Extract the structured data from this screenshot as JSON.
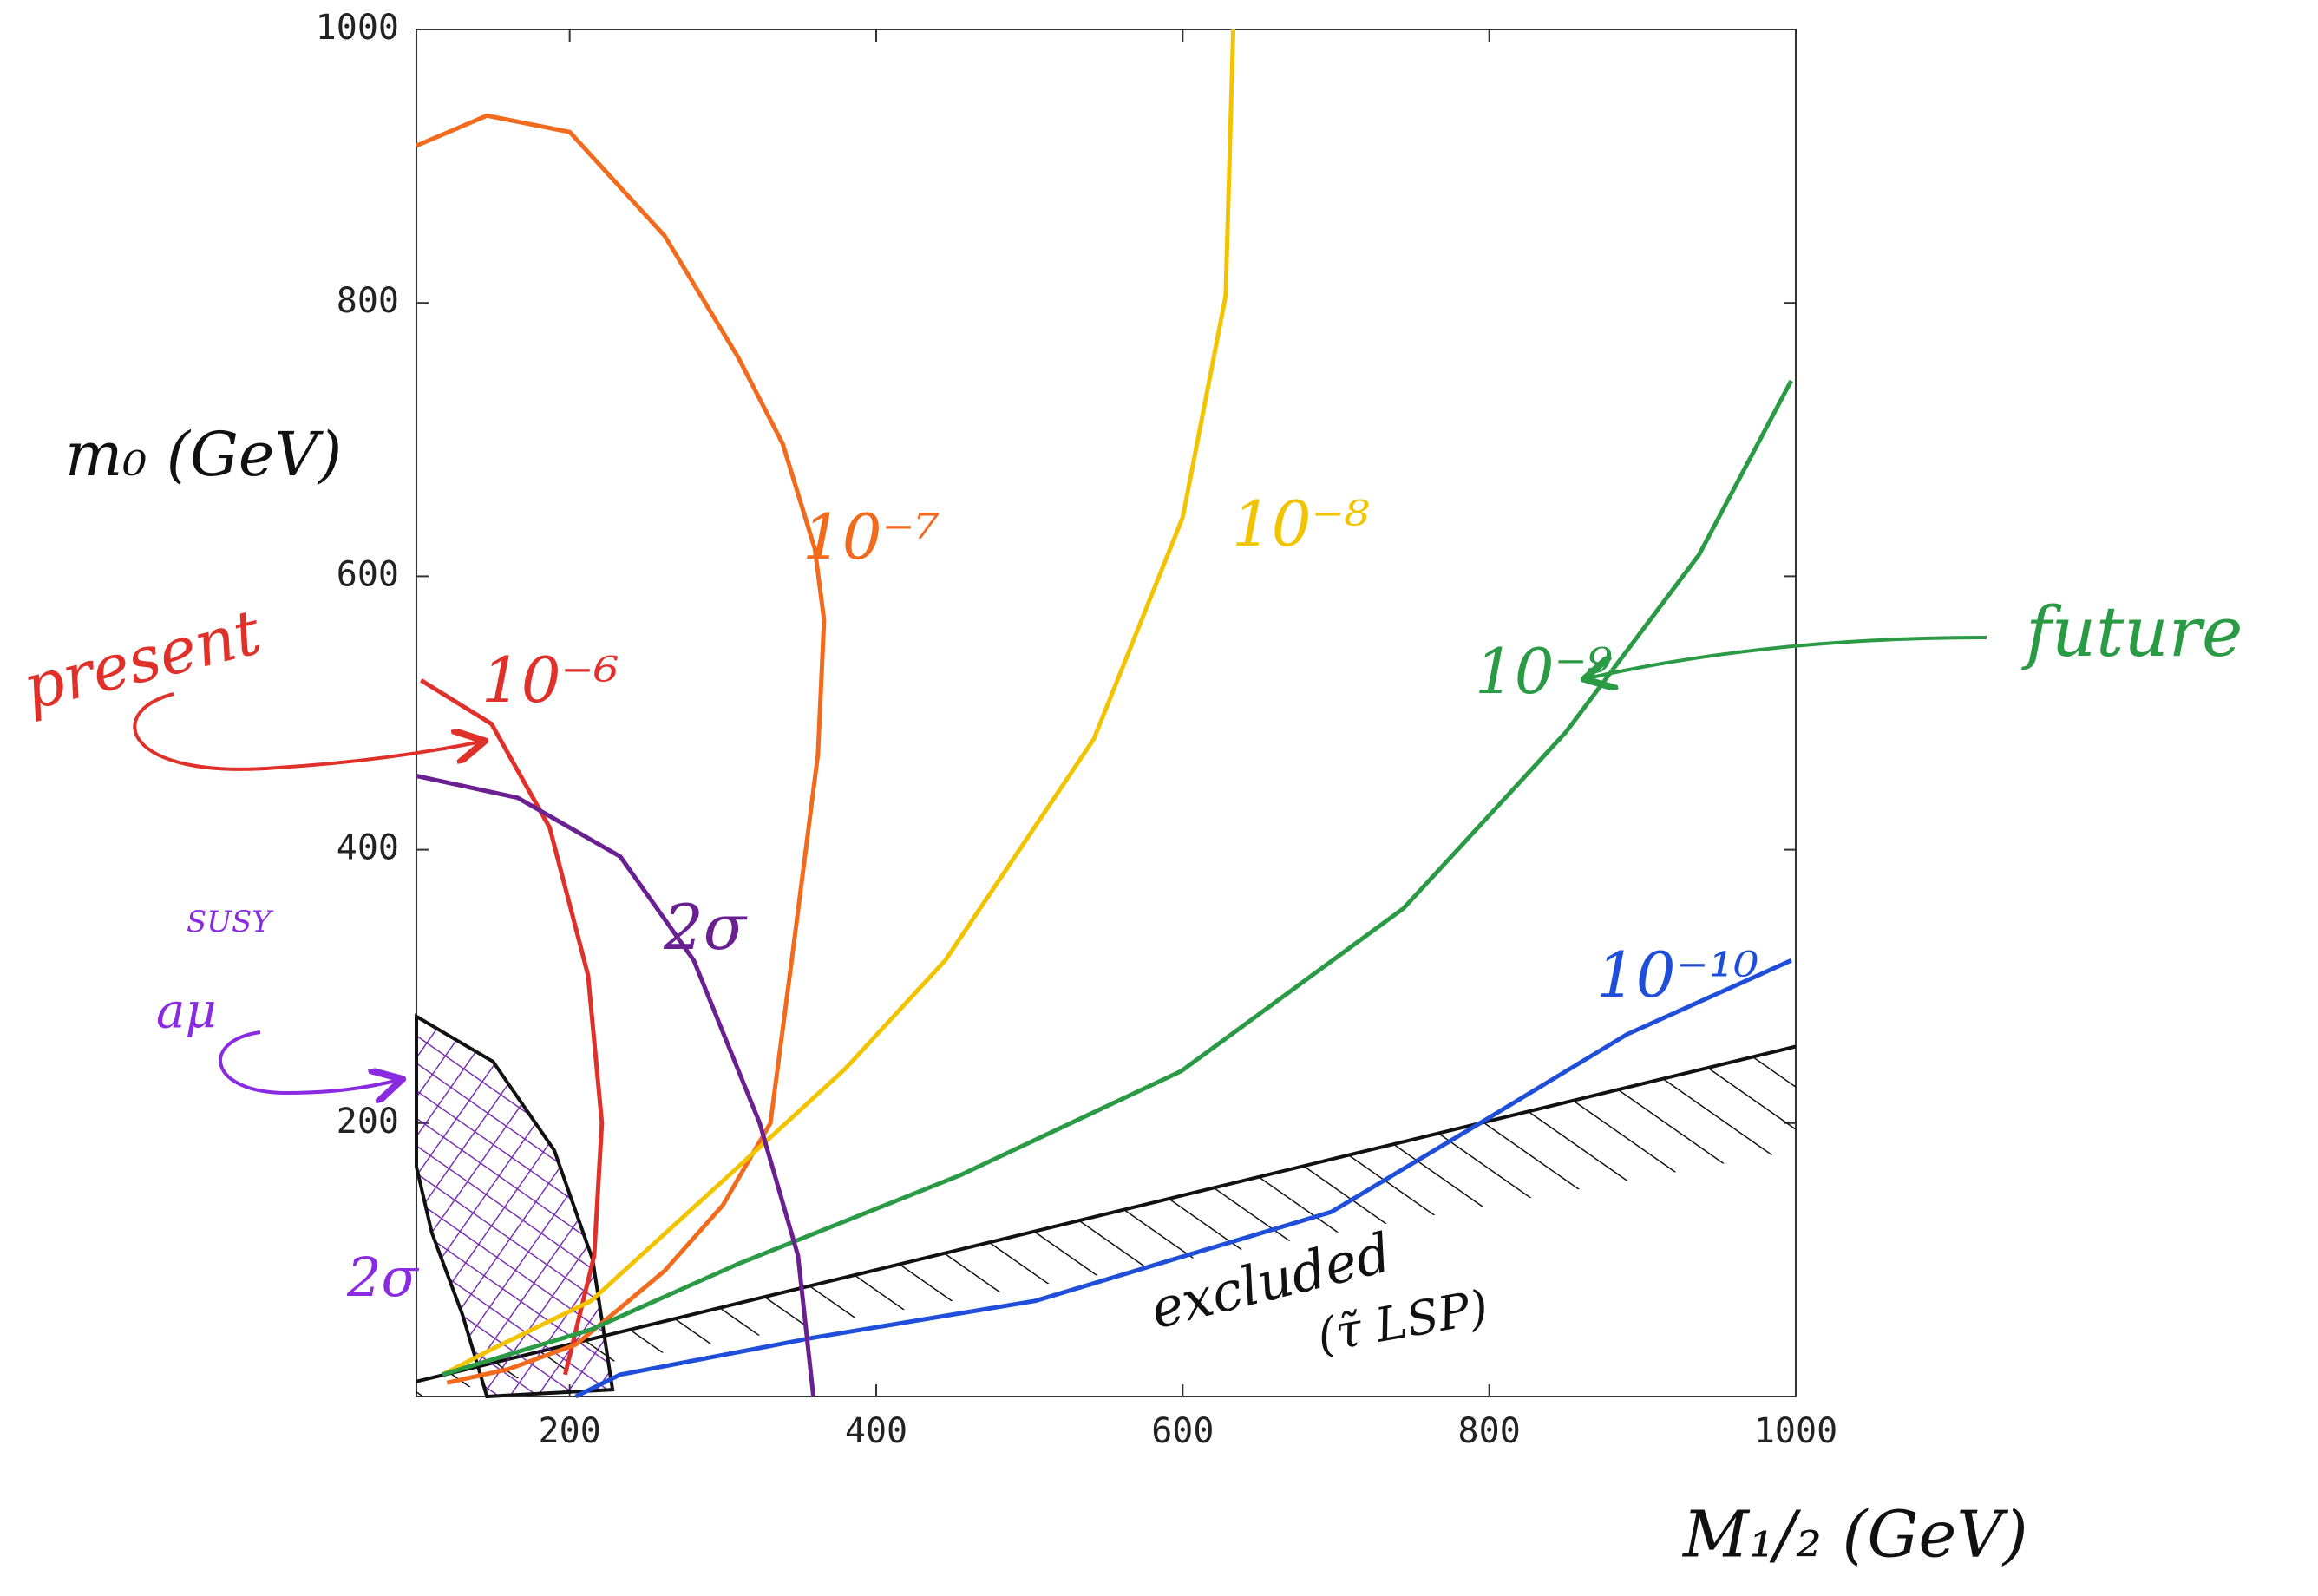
{
  "chart_data": {
    "type": "line",
    "xlabel": "M₁/₂ (GeV)",
    "ylabel": "m₀ (GeV)",
    "xlim": [
      100,
      1000
    ],
    "ylim": [
      0,
      1000
    ],
    "xticks": [
      200,
      400,
      600,
      800,
      1000
    ],
    "yticks": [
      200,
      400,
      600,
      800,
      1000
    ],
    "series": [
      {
        "name": "10⁻⁶",
        "color": "#e0302a",
        "x": [
          103,
          149,
          187,
          212,
          221,
          216,
          197
        ],
        "values": [
          524,
          492,
          416,
          308,
          200,
          103,
          16
        ]
      },
      {
        "name": "10⁻⁷",
        "color": "#f26a1b",
        "x": [
          100,
          146,
          200,
          262,
          310,
          339,
          360,
          366,
          362,
          345,
          331,
          300,
          262,
          230,
          204,
          160,
          120
        ],
        "values": [
          915,
          937,
          925,
          849,
          760,
          697,
          620,
          568,
          470,
          320,
          200,
          140,
          92,
          62,
          38,
          20,
          10
        ]
      },
      {
        "name": "10⁻⁸",
        "color": "#f2c400",
        "x": [
          633,
          628,
          600,
          542,
          445,
          380,
          310,
          214,
          150,
          117
        ],
        "values": [
          1000,
          805,
          643,
          481,
          319,
          240,
          168,
          70,
          35,
          16
        ]
      },
      {
        "name": "10⁻⁹",
        "color": "#2a9a45",
        "x": [
          997,
          937,
          850,
          744,
          599,
          455,
          310,
          214,
          117
        ],
        "values": [
          743,
          616,
          486,
          357,
          238,
          162,
          97,
          49,
          16
        ]
      },
      {
        "name": "10⁻¹⁰",
        "color": "#1f4fd8",
        "x": [
          997,
          890,
          794,
          697,
          504,
          359,
          233,
          204
        ],
        "values": [
          319,
          265,
          200,
          135,
          70,
          43,
          16,
          0
        ]
      },
      {
        "name": "2σ",
        "color": "#6a2090",
        "x": [
          100,
          166,
          233,
          281,
          324,
          349,
          359
        ],
        "values": [
          454,
          438,
          395,
          319,
          200,
          103,
          0
        ]
      }
    ],
    "regions": [
      {
        "name": "2σ",
        "color": "#8a2be2",
        "x": [
          100,
          150,
          190,
          215,
          228,
          146,
          130,
          110,
          100
        ],
        "values": [
          278,
          245,
          180,
          100,
          5,
          0,
          60,
          120,
          168
        ]
      }
    ],
    "excluded": {
      "label": "excluded",
      "sublabel": "(τ̃ LSP)",
      "x": [
        100,
        1000
      ],
      "values": [
        11,
        256
      ]
    },
    "annotations": [
      "present",
      "future",
      "aμ",
      "SUSY"
    ]
  }
}
